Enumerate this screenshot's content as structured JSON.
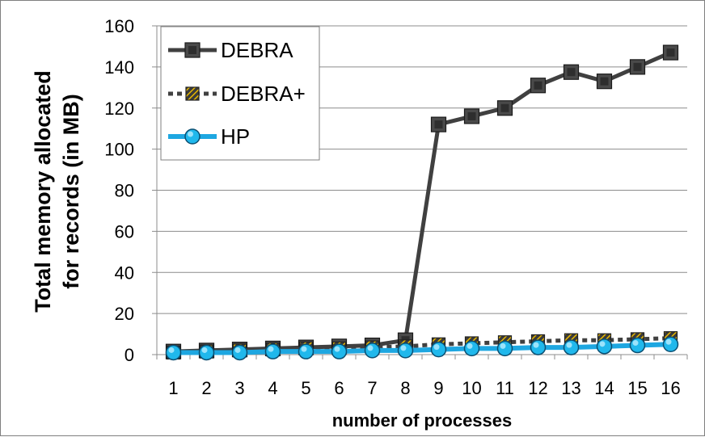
{
  "chart_data": {
    "type": "line",
    "title": "",
    "xlabel": "number of processes",
    "ylabel_lines": [
      "Total memory allocated",
      "for records (in MB)"
    ],
    "x": [
      1,
      2,
      3,
      4,
      5,
      6,
      7,
      8,
      9,
      10,
      11,
      12,
      13,
      14,
      15,
      16
    ],
    "ylim": [
      0,
      160
    ],
    "yticks": [
      0,
      20,
      40,
      60,
      80,
      100,
      120,
      140,
      160
    ],
    "grid": "horizontal",
    "legend_position": "top-left",
    "series": [
      {
        "name": "DEBRA",
        "color": "#404040",
        "marker": "square",
        "line_style": "solid",
        "values": [
          1.5,
          2,
          2.5,
          3,
          3.5,
          4,
          4.5,
          7,
          112,
          116,
          120,
          131,
          137.5,
          133,
          140,
          147
        ]
      },
      {
        "name": "DEBRA+",
        "color": "#404040",
        "marker": "square-hatched",
        "line_style": "dashed",
        "values": [
          1,
          1.5,
          2,
          2.5,
          3,
          3,
          3.5,
          4,
          5,
          5.5,
          6,
          6.5,
          7,
          7,
          7.5,
          8
        ]
      },
      {
        "name": "HP",
        "color": "#1ea7e1",
        "marker": "circle",
        "line_style": "solid",
        "values": [
          1,
          1,
          1,
          1.5,
          1.5,
          1.5,
          2,
          2,
          2.5,
          3,
          3,
          3.5,
          3.5,
          4,
          4.5,
          5
        ]
      }
    ]
  }
}
